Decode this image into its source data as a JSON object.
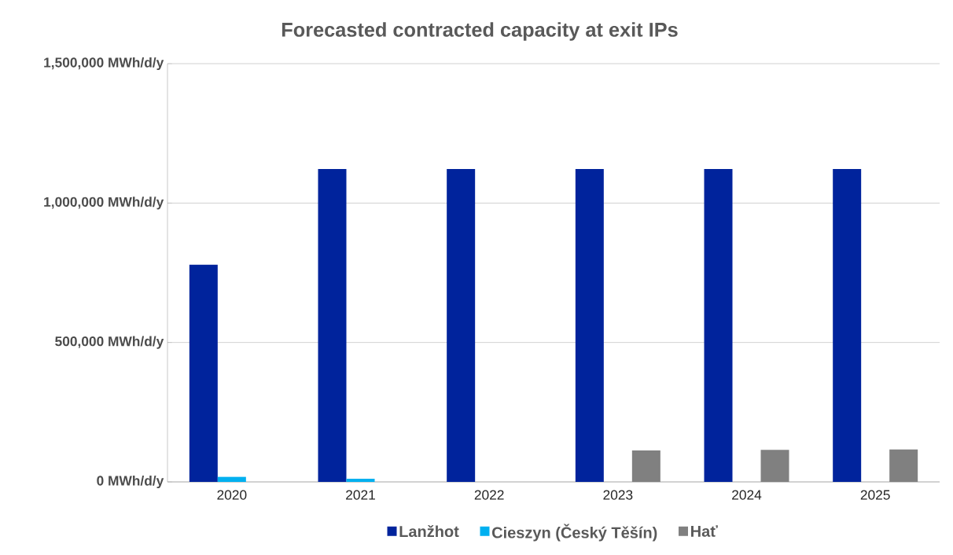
{
  "chart_data": {
    "type": "bar",
    "title": "Forecasted contracted capacity at exit IPs",
    "categories": [
      "2020",
      "2021",
      "2022",
      "2023",
      "2024",
      "2025"
    ],
    "series": [
      {
        "name": "Lanžhot",
        "color": "#00239c",
        "values": [
          779000,
          1122000,
          1122000,
          1122000,
          1122000,
          1122000
        ]
      },
      {
        "name": "Cieszyn (Český Těšín)",
        "color": "#00b0f0",
        "values": [
          18000,
          11000,
          null,
          null,
          null,
          null
        ]
      },
      {
        "name": "Hať",
        "color": "#808080",
        "values": [
          null,
          null,
          null,
          113000,
          115000,
          117000
        ]
      }
    ],
    "ylim": [
      0,
      1500000
    ],
    "yticks": [
      {
        "value": 0,
        "label": "0 MWh/d/y"
      },
      {
        "value": 500000,
        "label": "500,000 MWh/d/y"
      },
      {
        "value": 1000000,
        "label": "1,000,000 MWh/d/y"
      },
      {
        "value": 1500000,
        "label": "1,500,000 MWh/d/y"
      }
    ],
    "grid": "y",
    "legend": "bottom"
  }
}
